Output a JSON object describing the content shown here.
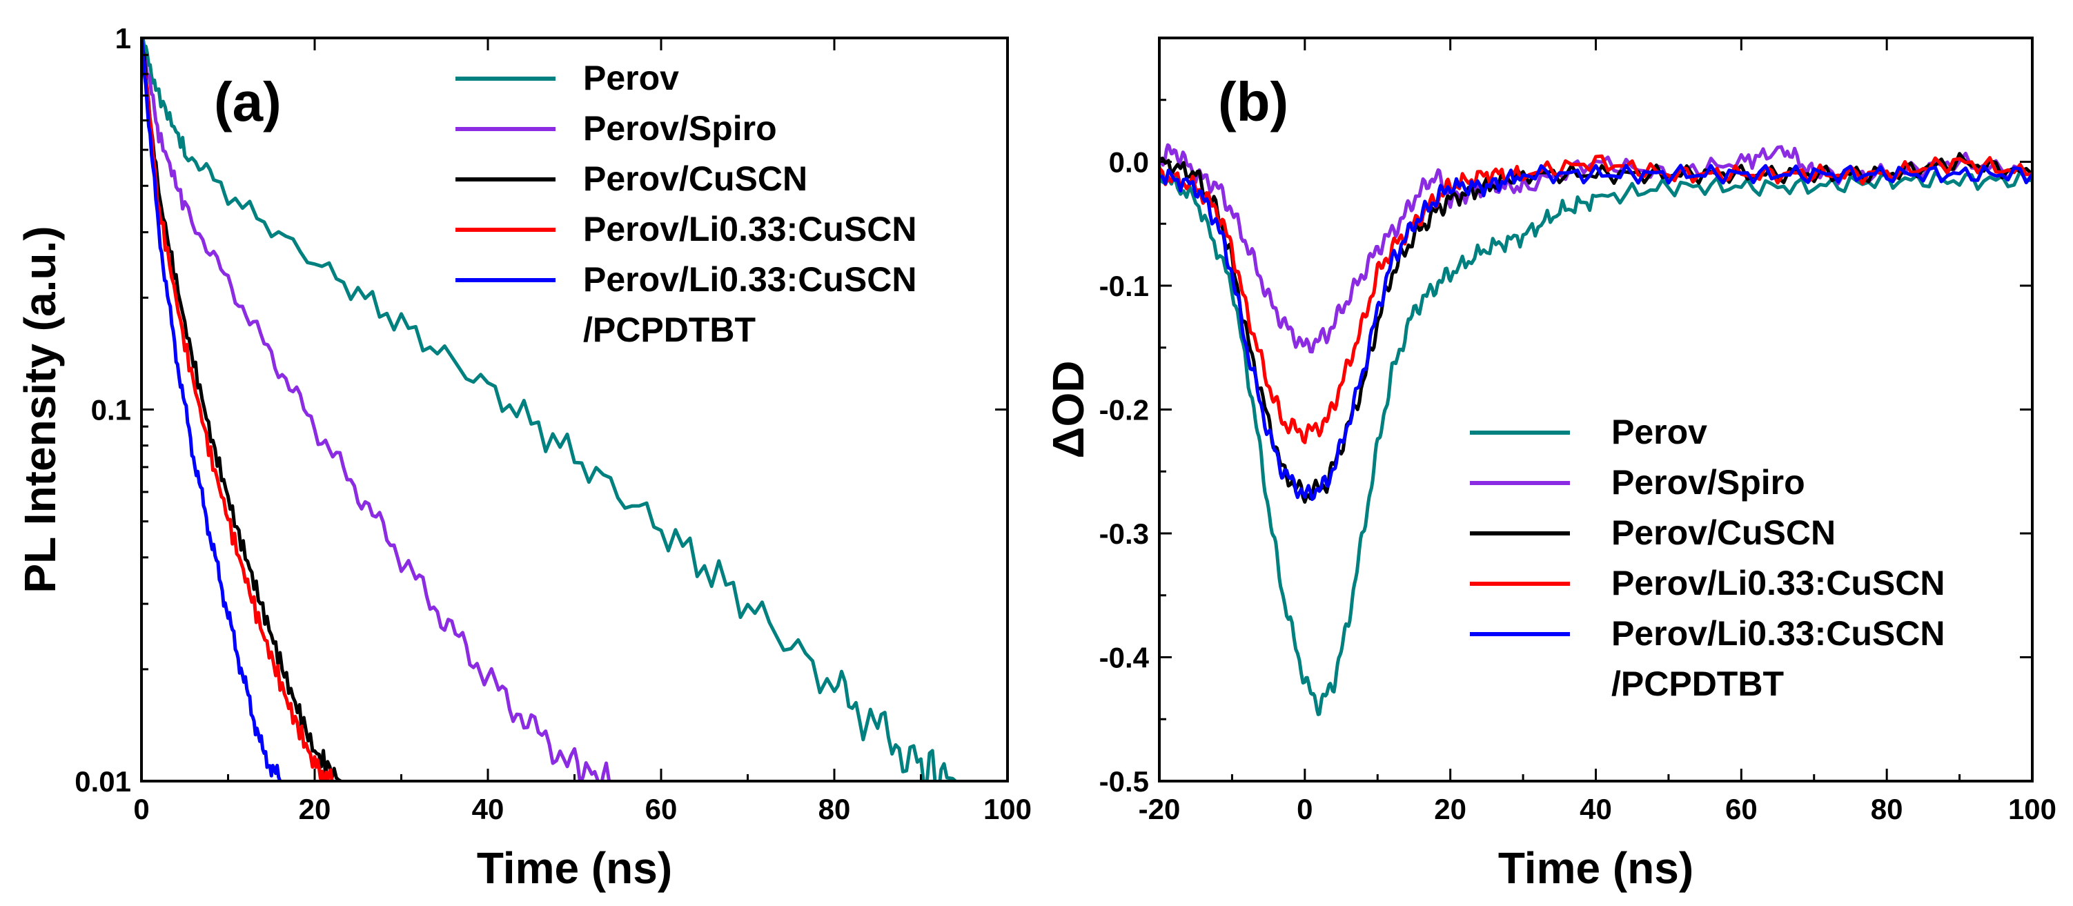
{
  "figure": {
    "colors": {
      "Perov": "#00807F",
      "Perov/Spiro": "#8B2BE2",
      "Perov/CuSCN": "#000000",
      "Perov/Li0.33:CuSCN": "#FF0000",
      "Perov/Li0.33:CuSCN/PCPDTBT": "#0000FF"
    }
  },
  "chart_data": [
    {
      "id": "a",
      "type": "line",
      "panel_label": "(a)",
      "xlabel": "Time (ns)",
      "ylabel": "PL Intensity (a.u.)",
      "xscale": "linear",
      "yscale": "log",
      "xlim": [
        0,
        100
      ],
      "ylim": [
        0.01,
        1
      ],
      "xticks": [
        0,
        20,
        40,
        60,
        80,
        100
      ],
      "xtick_labels": [
        "0",
        "20",
        "40",
        "60",
        "80",
        "100"
      ],
      "yticks": [
        0.01,
        0.1,
        1
      ],
      "ytick_labels": [
        "0.01",
        "0.1",
        "1"
      ],
      "legend_position": "top-right",
      "legend": [
        "Perov",
        "Perov/Spiro",
        "Perov/CuSCN",
        "Perov/Li0.33:CuSCN",
        "Perov/Li0.33:CuSCN",
        "/PCPDTBT"
      ],
      "series": [
        {
          "name": "Perov",
          "x": [
            0,
            2,
            5,
            10,
            20,
            30,
            40,
            50,
            60,
            70,
            80,
            85,
            90,
            94
          ],
          "y": [
            1,
            0.7,
            0.5,
            0.38,
            0.25,
            0.17,
            0.115,
            0.075,
            0.048,
            0.03,
            0.018,
            0.014,
            0.011,
            0.01
          ]
        },
        {
          "name": "Perov/Spiro",
          "x": [
            0,
            2,
            5,
            10,
            15,
            20,
            25,
            30,
            35,
            40,
            45,
            50,
            54
          ],
          "y": [
            1,
            0.55,
            0.35,
            0.22,
            0.14,
            0.09,
            0.06,
            0.04,
            0.027,
            0.019,
            0.014,
            0.011,
            0.01
          ]
        },
        {
          "name": "Perov/CuSCN",
          "x": [
            0,
            2,
            5,
            8,
            11,
            14,
            17,
            20,
            23
          ],
          "y": [
            1,
            0.38,
            0.17,
            0.085,
            0.048,
            0.029,
            0.018,
            0.012,
            0.01
          ]
        },
        {
          "name": "Perov/Li0.33:CuSCN",
          "x": [
            0,
            2,
            5,
            8,
            11,
            14,
            17,
            20,
            22
          ],
          "y": [
            1,
            0.35,
            0.15,
            0.075,
            0.042,
            0.025,
            0.016,
            0.011,
            0.01
          ]
        },
        {
          "name": "Perov/Li0.33:CuSCN/PCPDTBT",
          "x": [
            0,
            2,
            4,
            6,
            8,
            10,
            12,
            14,
            16
          ],
          "y": [
            1,
            0.3,
            0.14,
            0.075,
            0.045,
            0.028,
            0.018,
            0.012,
            0.01
          ]
        }
      ]
    },
    {
      "id": "b",
      "type": "line",
      "panel_label": "(b)",
      "xlabel": "Time (ns)",
      "ylabel": "ΔOD",
      "xscale": "linear",
      "yscale": "linear",
      "xlim": [
        -20,
        100
      ],
      "ylim": [
        -0.5,
        0.1
      ],
      "xticks": [
        -20,
        0,
        20,
        40,
        60,
        80,
        100
      ],
      "xtick_labels": [
        "-20",
        "0",
        "20",
        "40",
        "60",
        "80",
        "100"
      ],
      "yticks": [
        0.0,
        -0.1,
        -0.2,
        -0.3,
        -0.4,
        -0.5
      ],
      "ytick_labels": [
        "0.0",
        "-0.1",
        "-0.2",
        "-0.3",
        "-0.4",
        "-0.5"
      ],
      "legend_position": "bottom-right",
      "legend": [
        "Perov",
        "Perov/Spiro",
        "Perov/CuSCN",
        "Perov/Li0.33:CuSCN",
        "Perov/Li0.33:CuSCN",
        "/PCPDTBT"
      ],
      "series": [
        {
          "name": "Perov",
          "x": [
            -20,
            -15,
            -10,
            -7,
            -5,
            -3,
            0,
            2,
            4,
            6,
            8,
            10,
            12,
            15,
            18,
            20,
            25,
            30,
            35,
            40,
            50,
            60,
            70,
            80,
            90,
            100
          ],
          "y": [
            -0.01,
            -0.03,
            -0.1,
            -0.2,
            -0.28,
            -0.35,
            -0.42,
            -0.44,
            -0.42,
            -0.37,
            -0.3,
            -0.23,
            -0.17,
            -0.12,
            -0.1,
            -0.09,
            -0.07,
            -0.06,
            -0.04,
            -0.03,
            -0.02,
            -0.02,
            -0.02,
            -0.015,
            -0.015,
            -0.015
          ]
        },
        {
          "name": "Perov/Spiro",
          "x": [
            -20,
            -18,
            -15,
            -12,
            -10,
            -7,
            -5,
            -3,
            0,
            3,
            5,
            8,
            10,
            13,
            15,
            18,
            20,
            25,
            30,
            40,
            50,
            60,
            66,
            70,
            80,
            90,
            100
          ],
          "y": [
            0,
            0.01,
            -0.01,
            -0.02,
            -0.04,
            -0.08,
            -0.11,
            -0.13,
            -0.15,
            -0.14,
            -0.12,
            -0.09,
            -0.07,
            -0.05,
            -0.03,
            -0.01,
            -0.03,
            -0.02,
            -0.02,
            0,
            -0.01,
            0,
            0.01,
            -0.01,
            -0.01,
            0,
            -0.01
          ]
        },
        {
          "name": "Perov/CuSCN",
          "x": [
            -20,
            -15,
            -12,
            -10,
            -8,
            -5,
            -3,
            0,
            3,
            5,
            8,
            10,
            12,
            15,
            18,
            20,
            25,
            30,
            40,
            50,
            60,
            70,
            80,
            90,
            100
          ],
          "y": [
            0,
            -0.01,
            -0.04,
            -0.08,
            -0.14,
            -0.21,
            -0.25,
            -0.27,
            -0.26,
            -0.23,
            -0.18,
            -0.13,
            -0.09,
            -0.06,
            -0.04,
            -0.03,
            -0.02,
            -0.01,
            -0.01,
            -0.01,
            -0.01,
            -0.01,
            -0.01,
            0,
            -0.01
          ]
        },
        {
          "name": "Perov/Li0.33:CuSCN",
          "x": [
            -20,
            -15,
            -12,
            -10,
            -8,
            -5,
            -3,
            0,
            3,
            5,
            8,
            10,
            12,
            15,
            18,
            20,
            25,
            30,
            40,
            50,
            60,
            70,
            80,
            90,
            100
          ],
          "y": [
            -0.01,
            -0.02,
            -0.04,
            -0.07,
            -0.12,
            -0.18,
            -0.21,
            -0.22,
            -0.21,
            -0.18,
            -0.13,
            -0.09,
            -0.07,
            -0.05,
            -0.03,
            -0.02,
            -0.01,
            -0.01,
            0,
            -0.01,
            -0.01,
            -0.01,
            -0.01,
            0,
            -0.01
          ]
        },
        {
          "name": "Perov/Li0.33:CuSCN/PCPDTBT",
          "x": [
            -20,
            -15,
            -12,
            -10,
            -8,
            -5,
            -3,
            0,
            3,
            5,
            8,
            10,
            12,
            15,
            18,
            20,
            25,
            30,
            40,
            50,
            60,
            70,
            80,
            90,
            100
          ],
          "y": [
            -0.01,
            -0.02,
            -0.05,
            -0.09,
            -0.15,
            -0.22,
            -0.25,
            -0.27,
            -0.26,
            -0.23,
            -0.17,
            -0.12,
            -0.08,
            -0.05,
            -0.03,
            -0.02,
            -0.02,
            -0.01,
            -0.01,
            -0.01,
            -0.01,
            -0.01,
            -0.01,
            -0.01,
            -0.01
          ]
        }
      ]
    }
  ]
}
